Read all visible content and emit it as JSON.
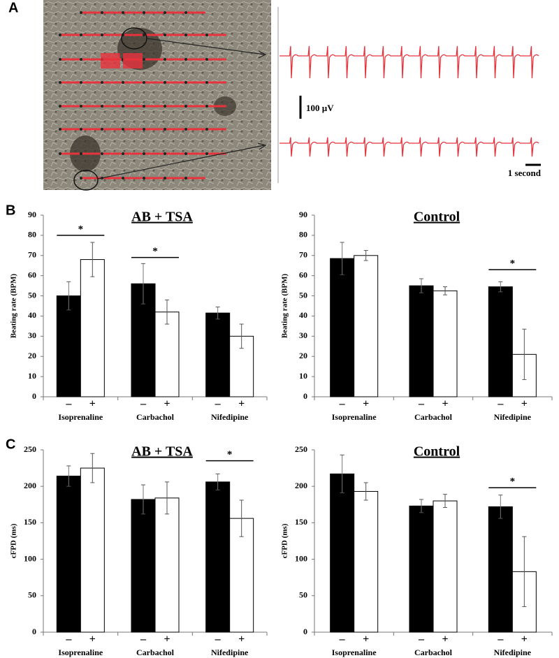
{
  "panel_labels": [
    "A",
    "B",
    "C"
  ],
  "recording": {
    "amplitude_scale": "100 µV",
    "time_scale": "1 second"
  },
  "chart_data": [
    {
      "type": "bar",
      "title": "AB + TSA",
      "y_label": "Beating rate (BPM)",
      "categories": [
        "Isoprenaline",
        "Carbachol",
        "Nifedipine"
      ],
      "series": [
        {
          "name": "–",
          "color": "#000000",
          "values": [
            50,
            56,
            41.5
          ],
          "errors": [
            7,
            10,
            3
          ]
        },
        {
          "name": "+",
          "color": "#ffffff",
          "values": [
            68,
            42,
            30
          ],
          "errors": [
            8.5,
            6,
            6
          ]
        }
      ],
      "ylim": [
        0,
        90
      ],
      "yticks": [
        0,
        10,
        20,
        30,
        40,
        50,
        60,
        70,
        80,
        90
      ],
      "significance": [
        {
          "label": "*",
          "category": "Isoprenaline",
          "y": 80
        },
        {
          "label": "*",
          "category": "Carbachol",
          "y": 69
        }
      ]
    },
    {
      "type": "bar",
      "title": "Control",
      "y_label": "Beating rate (BPM)",
      "categories": [
        "Isoprenaline",
        "Carbachol",
        "Nifedipine"
      ],
      "series": [
        {
          "name": "–",
          "color": "#000000",
          "values": [
            68.5,
            55,
            54.5
          ],
          "errors": [
            8,
            3.5,
            2.5
          ]
        },
        {
          "name": "+",
          "color": "#ffffff",
          "values": [
            70,
            52.5,
            21
          ],
          "errors": [
            2.5,
            2,
            12.5
          ]
        }
      ],
      "ylim": [
        0,
        90
      ],
      "yticks": [
        0,
        10,
        20,
        30,
        40,
        50,
        60,
        70,
        80,
        90
      ],
      "significance": [
        {
          "label": "*",
          "category": "Nifedipine",
          "y": 63
        }
      ]
    },
    {
      "type": "bar",
      "title": "AB + TSA",
      "y_label": "cFPD (ms)",
      "categories": [
        "Isoprenaline",
        "Carbachol",
        "Nifedipine"
      ],
      "series": [
        {
          "name": "–",
          "color": "#000000",
          "values": [
            214,
            182,
            206
          ],
          "errors": [
            14,
            20,
            11
          ]
        },
        {
          "name": "+",
          "color": "#ffffff",
          "values": [
            225,
            184,
            156
          ],
          "errors": [
            20,
            22,
            25
          ]
        }
      ],
      "ylim": [
        0,
        250
      ],
      "yticks": [
        0,
        50,
        100,
        150,
        200,
        250
      ],
      "significance": [
        {
          "label": "*",
          "category": "Nifedipine",
          "y": 235
        }
      ]
    },
    {
      "type": "bar",
      "title": "Control",
      "y_label": "cFPD (ms)",
      "categories": [
        "Isoprenaline",
        "Carbachol",
        "Nifedipine"
      ],
      "series": [
        {
          "name": "–",
          "color": "#000000",
          "values": [
            217,
            173,
            172
          ],
          "errors": [
            26,
            9,
            16
          ]
        },
        {
          "name": "+",
          "color": "#ffffff",
          "values": [
            193,
            180,
            83
          ],
          "errors": [
            12,
            9,
            48
          ]
        }
      ],
      "ylim": [
        0,
        250
      ],
      "yticks": [
        0,
        50,
        100,
        150,
        200,
        250
      ],
      "significance": [
        {
          "label": "*",
          "category": "Nifedipine",
          "y": 198
        }
      ]
    }
  ]
}
